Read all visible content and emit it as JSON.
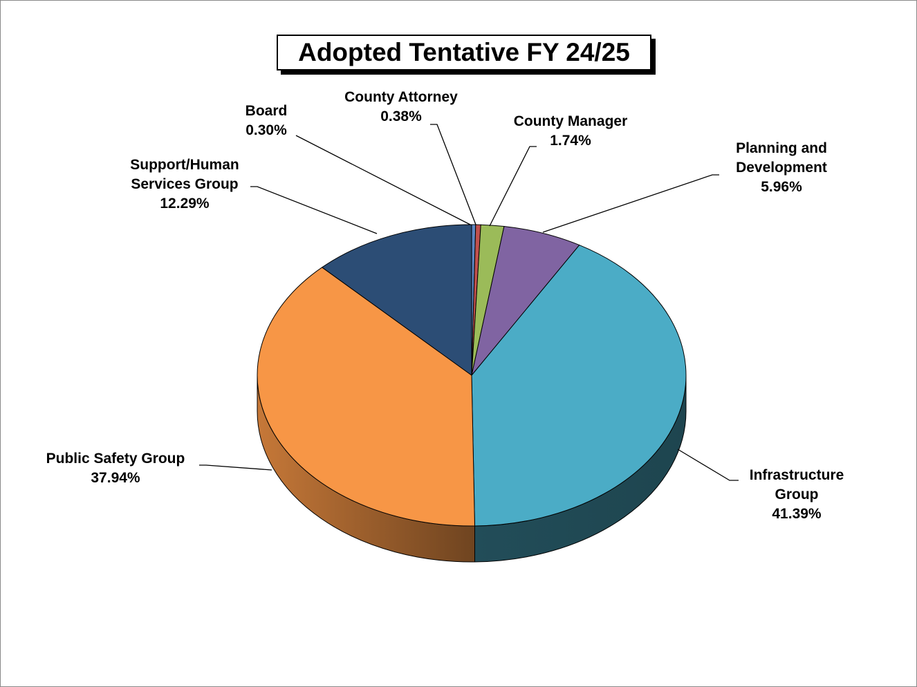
{
  "chart_data": {
    "type": "pie",
    "title": "Adopted Tentative FY 24/25",
    "categories": [
      "Board",
      "County Attorney",
      "County Manager",
      "Planning and Development",
      "Infrastructure Group",
      "Public Safety Group",
      "Support/Human Services Group"
    ],
    "values": [
      0.3,
      0.38,
      1.74,
      5.96,
      41.39,
      37.94,
      12.29
    ],
    "value_labels": [
      "0.30%",
      "0.38%",
      "1.74%",
      "5.96%",
      "41.39%",
      "37.94%",
      "12.29%"
    ],
    "colors": [
      "#5b86c2",
      "#c0504d",
      "#9bbb59",
      "#8064a2",
      "#4bacc6",
      "#f79646",
      "#2c4d75"
    ]
  }
}
